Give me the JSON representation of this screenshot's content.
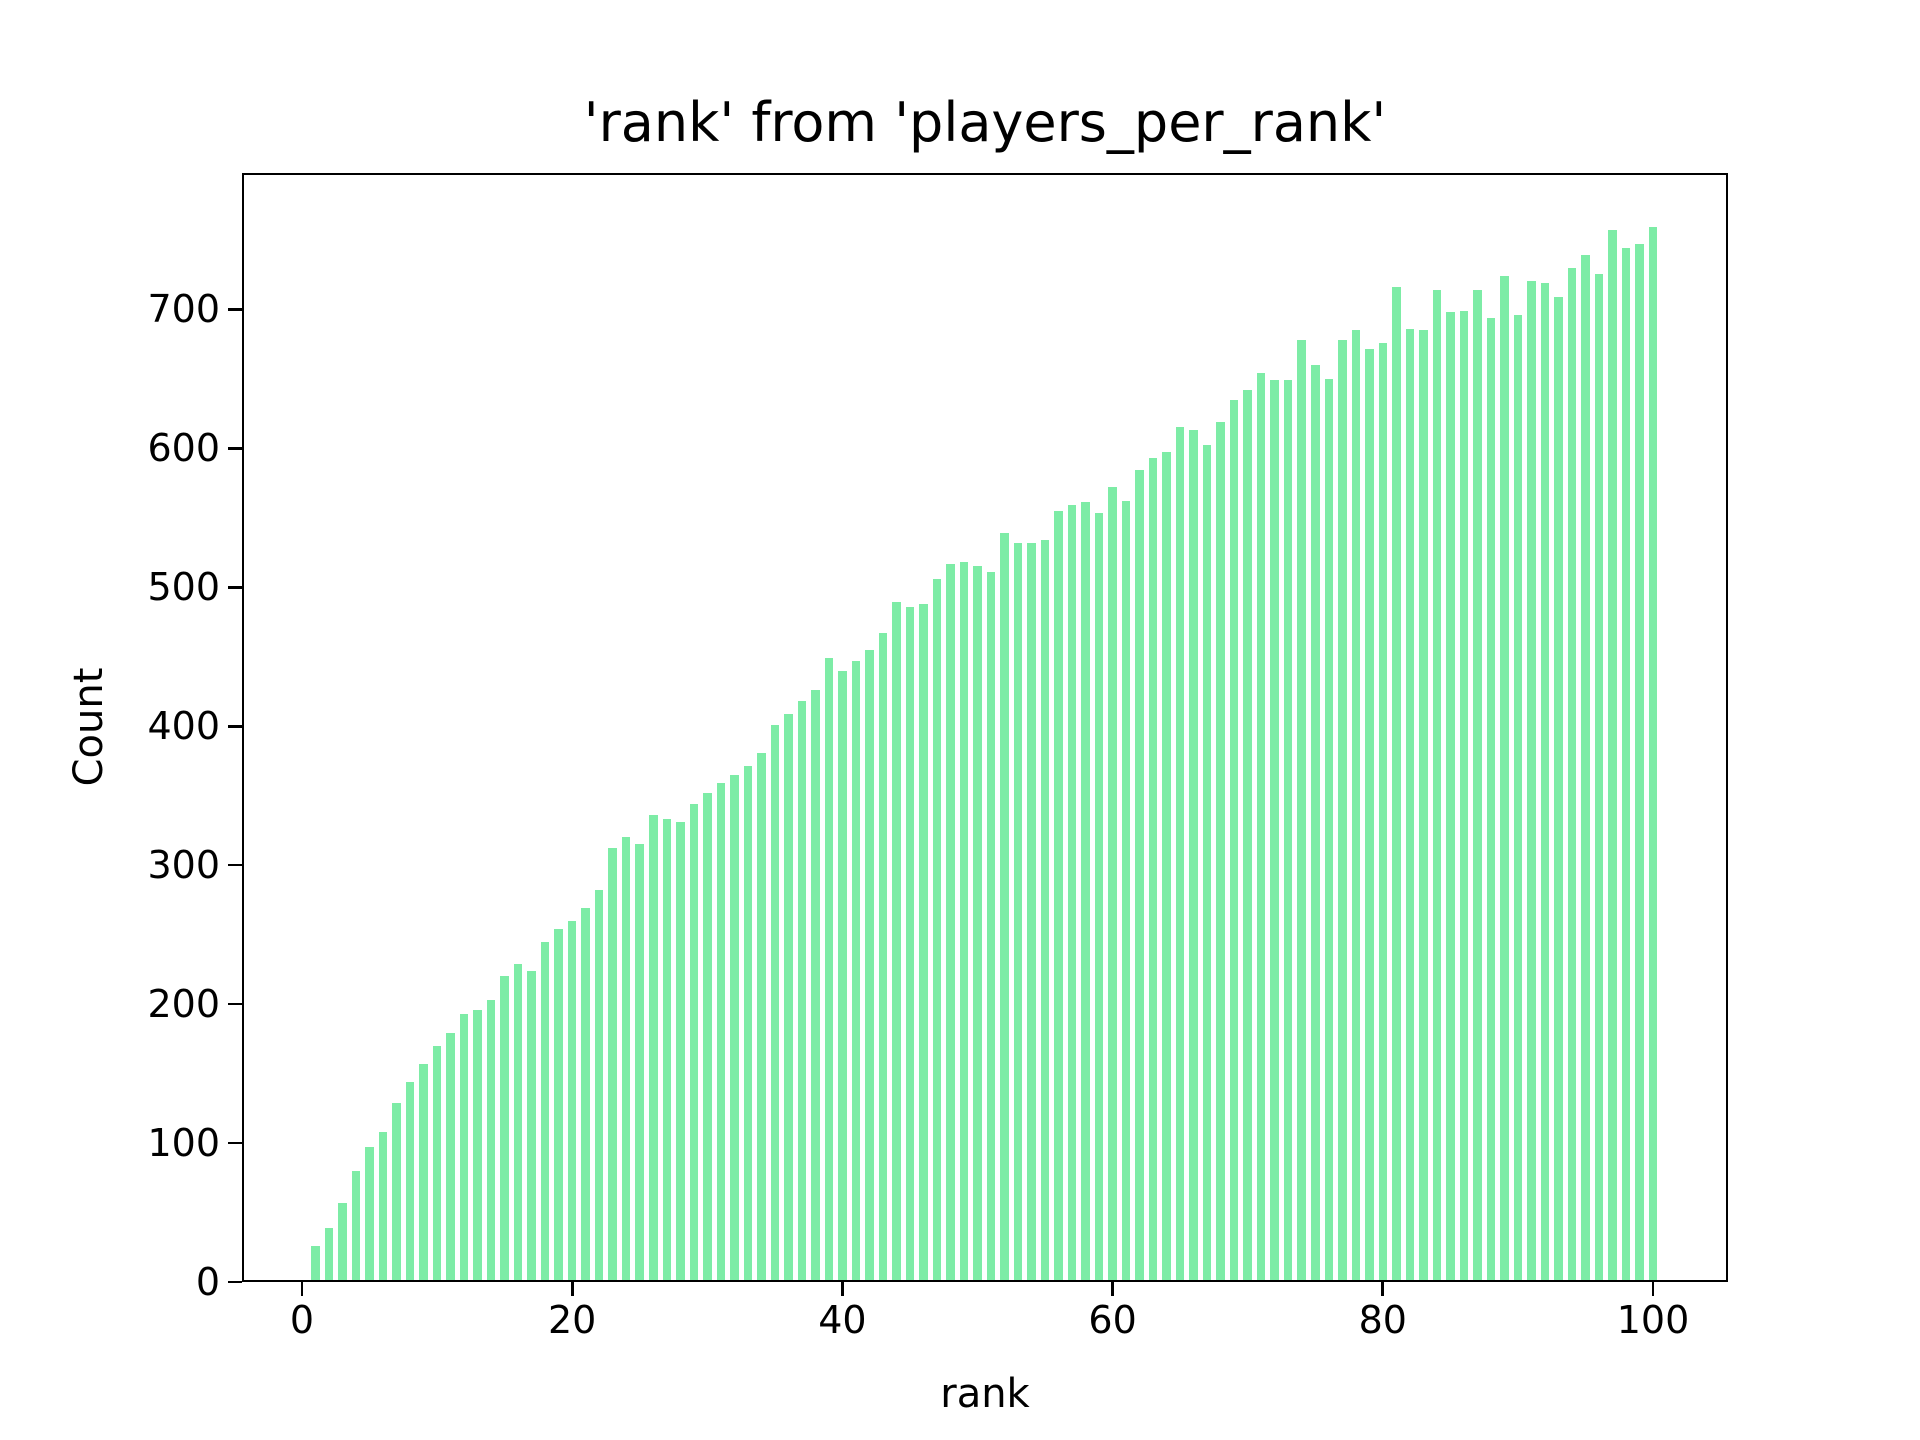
{
  "chart_data": {
    "type": "bar",
    "title": "'rank' from 'players_per_rank'",
    "xlabel": "rank",
    "ylabel": "Count",
    "legend": null,
    "grid": false,
    "bar_color": "#7deca6",
    "axis_color": "#000000",
    "background_color": "#ffffff",
    "xticks": [
      0,
      20,
      40,
      60,
      80,
      100
    ],
    "yticks": [
      0,
      100,
      200,
      300,
      400,
      500,
      600,
      700
    ],
    "xlim": [
      -4.44,
      105.55
    ],
    "ylim": [
      0,
      798
    ],
    "x": [
      1,
      2,
      3,
      4,
      5,
      6,
      7,
      8,
      9,
      10,
      11,
      12,
      13,
      14,
      15,
      16,
      17,
      18,
      19,
      20,
      21,
      22,
      23,
      24,
      25,
      26,
      27,
      28,
      29,
      30,
      31,
      32,
      33,
      34,
      35,
      36,
      37,
      38,
      39,
      40,
      41,
      42,
      43,
      44,
      45,
      46,
      47,
      48,
      49,
      50,
      51,
      52,
      53,
      54,
      55,
      56,
      57,
      58,
      59,
      60,
      61,
      62,
      63,
      64,
      65,
      66,
      67,
      68,
      69,
      70,
      71,
      72,
      73,
      74,
      75,
      76,
      77,
      78,
      79,
      80,
      81,
      82,
      83,
      84,
      85,
      86,
      87,
      88,
      89,
      90,
      91,
      92,
      93,
      94,
      95,
      96,
      97,
      98,
      99,
      100
    ],
    "values": [
      26,
      39,
      57,
      80,
      97,
      108,
      129,
      144,
      157,
      170,
      179,
      193,
      196,
      203,
      220,
      229,
      224,
      245,
      254,
      260,
      269,
      282,
      312,
      320,
      315,
      336,
      333,
      331,
      344,
      352,
      359,
      365,
      371,
      381,
      401,
      409,
      418,
      426,
      449,
      440,
      447,
      455,
      467,
      489,
      486,
      488,
      506,
      517,
      518,
      515,
      511,
      539,
      532,
      532,
      534,
      555,
      559,
      561,
      553,
      572,
      562,
      584,
      593,
      597,
      615,
      613,
      602,
      619,
      635,
      642,
      654,
      649,
      649,
      678,
      660,
      650,
      678,
      685,
      671,
      676,
      716,
      686,
      685,
      714,
      698,
      699,
      714,
      694,
      724,
      696,
      720,
      719,
      709,
      730,
      739,
      725,
      757,
      744,
      747,
      759
    ]
  }
}
